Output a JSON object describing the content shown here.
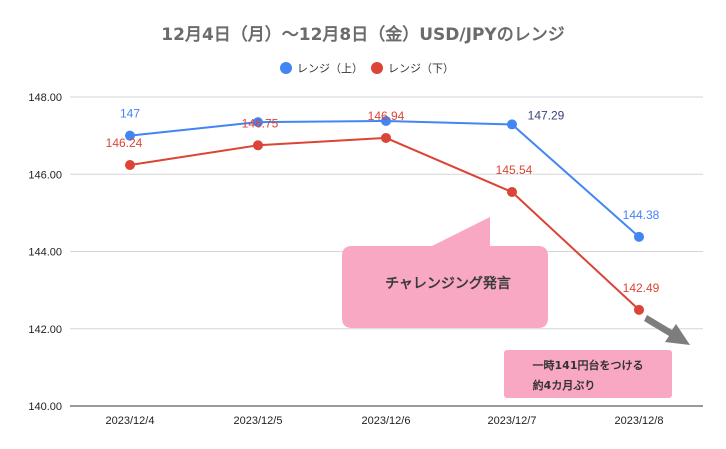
{
  "chart_data": {
    "type": "line",
    "title": "12月4日（月）〜12月8日（金）USD/JPYのレンジ",
    "categories": [
      "2023/12/4",
      "2023/12/5",
      "2023/12/6",
      "2023/12/7",
      "2023/12/8"
    ],
    "series": [
      {
        "name": "レンジ（上）",
        "color": "#4285f4",
        "values": [
          147.0,
          147.35,
          147.38,
          147.29,
          144.38
        ],
        "labels": [
          "147",
          "",
          "",
          "147.29",
          "144.38"
        ]
      },
      {
        "name": "レンジ（下）",
        "color": "#db4437",
        "values": [
          146.24,
          146.75,
          146.94,
          145.54,
          142.49
        ],
        "labels": [
          "146.24",
          "146.75",
          "146.94",
          "145.54",
          "142.49"
        ]
      }
    ],
    "yticks": [
      "148.00",
      "146.00",
      "144.00",
      "142.00",
      "140.00"
    ],
    "ylim": [
      140,
      148
    ],
    "grid": true,
    "legend_position": "top",
    "annotations": {
      "callout": "チャレンジング発言",
      "note_line1": "一時141円台をつける",
      "note_line2": "約4カ月ぶり"
    }
  }
}
